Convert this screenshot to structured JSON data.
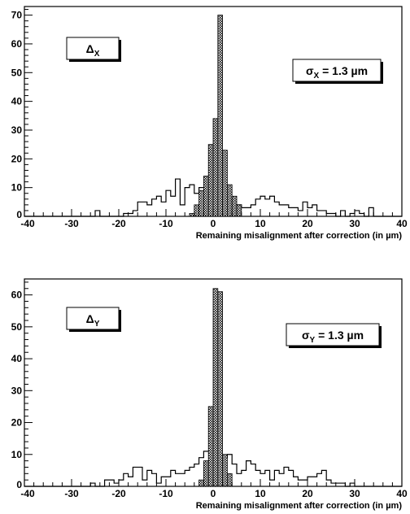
{
  "chart_data": [
    {
      "type": "histogram",
      "xlabel": "Remaining misalignment after correction (in µm)",
      "xlim": [
        -40,
        40
      ],
      "ylim": [
        0,
        73
      ],
      "yticks": [
        0,
        10,
        20,
        30,
        40,
        50,
        60,
        70
      ],
      "xticks": [
        -40,
        -30,
        -20,
        -10,
        0,
        10,
        20,
        30,
        40
      ],
      "bin_width": 1,
      "label_box": {
        "symbol": "Δ",
        "subscript": "X"
      },
      "sigma_box": {
        "symbol": "σ",
        "subscript": "X",
        "value": " = 1.3 µm"
      },
      "series": [
        {
          "style": "outline",
          "x_start": -40,
          "values": [
            0,
            0,
            0,
            0,
            0,
            0,
            0,
            0,
            0,
            0,
            0,
            0,
            0,
            0,
            0,
            2,
            0,
            0,
            0,
            0,
            0,
            1,
            1,
            2,
            5,
            5,
            4,
            6,
            7,
            5,
            9,
            7,
            13,
            4,
            10,
            11,
            8,
            10,
            10,
            10,
            9,
            7,
            6,
            5,
            4,
            4,
            3,
            3,
            4,
            6,
            7,
            6,
            7,
            5,
            4,
            4,
            3,
            3,
            2,
            5,
            3,
            4,
            2,
            2,
            1,
            1,
            0,
            2,
            0,
            1,
            2,
            1,
            0,
            3,
            0,
            0,
            0,
            0,
            0,
            0
          ]
        },
        {
          "style": "filled",
          "x_start": -10,
          "values": [
            0,
            0,
            0,
            0,
            0,
            1,
            4,
            9,
            14,
            25,
            34,
            70,
            23,
            11,
            7,
            4,
            0,
            0,
            0,
            0
          ]
        }
      ]
    },
    {
      "type": "histogram",
      "xlabel": "Remaining misalignment after correction (in µm)",
      "xlim": [
        -40,
        40
      ],
      "ylim": [
        0,
        65
      ],
      "yticks": [
        0,
        10,
        20,
        30,
        40,
        50,
        60
      ],
      "xticks": [
        -40,
        -30,
        -20,
        -10,
        0,
        10,
        20,
        30,
        40
      ],
      "bin_width": 1,
      "label_box": {
        "symbol": "Δ",
        "subscript": "Y"
      },
      "sigma_box": {
        "symbol": "σ",
        "subscript": "Y",
        "value": " = 1.3 µm"
      },
      "series": [
        {
          "style": "outline",
          "x_start": -40,
          "values": [
            0,
            0,
            0,
            0,
            0,
            0,
            0,
            0,
            0,
            0,
            0,
            0,
            0,
            0,
            1,
            0,
            0,
            2,
            2,
            1,
            2,
            4,
            3,
            6,
            6,
            2,
            5,
            4,
            1,
            3,
            3,
            5,
            4,
            4,
            5,
            6,
            7,
            9,
            11,
            11,
            11,
            10,
            9,
            10,
            7,
            4,
            5,
            8,
            7,
            5,
            4,
            5,
            2,
            5,
            4,
            6,
            5,
            3,
            2,
            2,
            3,
            3,
            4,
            5,
            2,
            1,
            1,
            1,
            0,
            1,
            0,
            0,
            0,
            0,
            0,
            0,
            0,
            0,
            0,
            0
          ]
        },
        {
          "style": "filled",
          "x_start": -10,
          "values": [
            0,
            0,
            0,
            0,
            0,
            0,
            0,
            2,
            8,
            25,
            62,
            61,
            10,
            4,
            0,
            0,
            0,
            0,
            0,
            0
          ]
        }
      ]
    }
  ]
}
